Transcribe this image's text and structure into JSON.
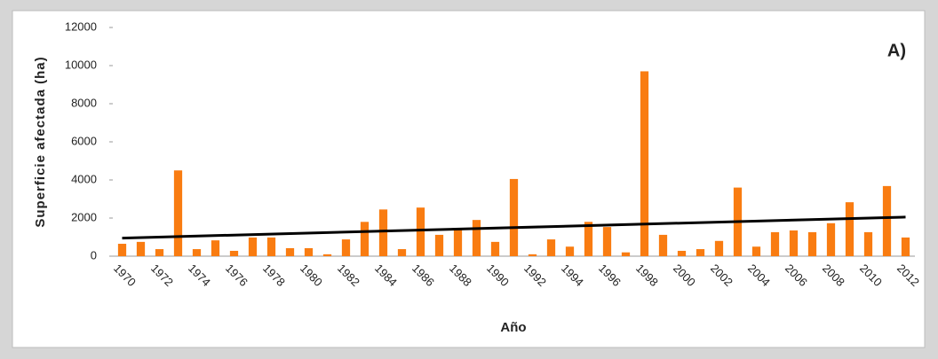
{
  "chart_data": {
    "type": "bar",
    "annotation": "A)",
    "x_label": "Año",
    "y_label": "Superficie afectada (ha)",
    "categories": [
      "1970",
      null,
      "1972",
      null,
      "1974",
      null,
      "1976",
      null,
      "1978",
      null,
      "1980",
      null,
      "1982",
      null,
      "1984",
      null,
      "1986",
      null,
      "1988",
      null,
      "1990",
      null,
      "1992",
      null,
      "1994",
      null,
      "1996",
      null,
      "1998",
      null,
      "2000",
      null,
      "2002",
      null,
      "2004",
      null,
      "2006",
      null,
      "2008",
      null,
      "2010",
      null,
      "2012"
    ],
    "values": [
      650,
      750,
      370,
      4500,
      370,
      830,
      280,
      980,
      980,
      420,
      420,
      100,
      880,
      1800,
      2450,
      370,
      2550,
      1120,
      1400,
      1900,
      750,
      4050,
      100,
      880,
      500,
      1800,
      1530,
      200,
      9700,
      1120,
      280,
      370,
      800,
      3600,
      500,
      1260,
      1350,
      1260,
      1730,
      2830,
      1260,
      3680,
      980
    ],
    "color": "#f97c11",
    "trend": {
      "values": [
        950,
        2050
      ],
      "color": "#000000"
    },
    "ylim": [
      0,
      12000
    ],
    "yticks": [
      0,
      2000,
      4000,
      6000,
      8000,
      10000,
      12000
    ],
    "grid": false
  }
}
